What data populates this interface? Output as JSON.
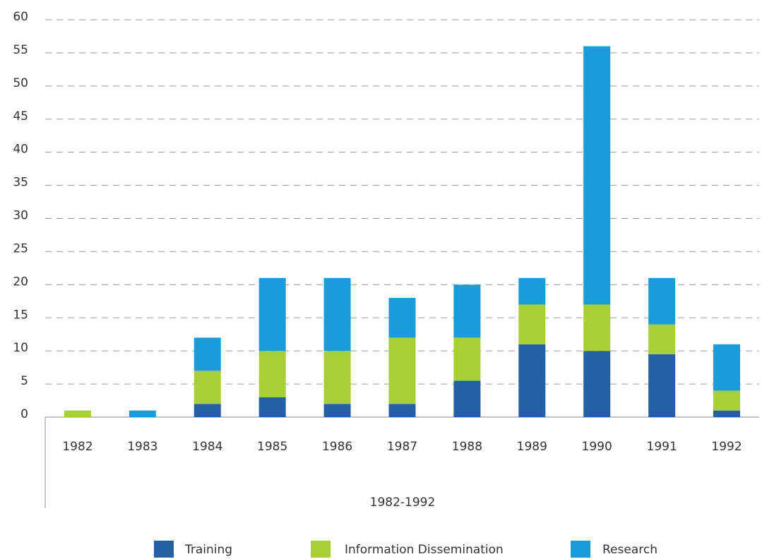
{
  "chart_data": {
    "type": "bar",
    "stacked": true,
    "x_label": "1982-1992",
    "categories": [
      "1982",
      "1983",
      "1984",
      "1985",
      "1986",
      "1987",
      "1988",
      "1989",
      "1990",
      "1991",
      "1992"
    ],
    "series": [
      {
        "name": "Training",
        "color": "#2360a5",
        "values": [
          0,
          0,
          2,
          3,
          2,
          2,
          5.5,
          11,
          10,
          9.5,
          1
        ]
      },
      {
        "name": "Information Dissemination",
        "color": "#a8cf38",
        "values": [
          1,
          0,
          5,
          7,
          8,
          10,
          6.5,
          6,
          7,
          4.5,
          3
        ]
      },
      {
        "name": "Research",
        "color": "#1b9bd7",
        "values": [
          0,
          1,
          5,
          11,
          11,
          6,
          8,
          4,
          39,
          7,
          7
        ]
      }
    ],
    "ylim": [
      0,
      60
    ],
    "yticks": [
      0,
      5,
      10,
      15,
      20,
      25,
      30,
      35,
      40,
      45,
      50,
      55,
      60
    ],
    "grid": true,
    "legend": "bottom"
  }
}
